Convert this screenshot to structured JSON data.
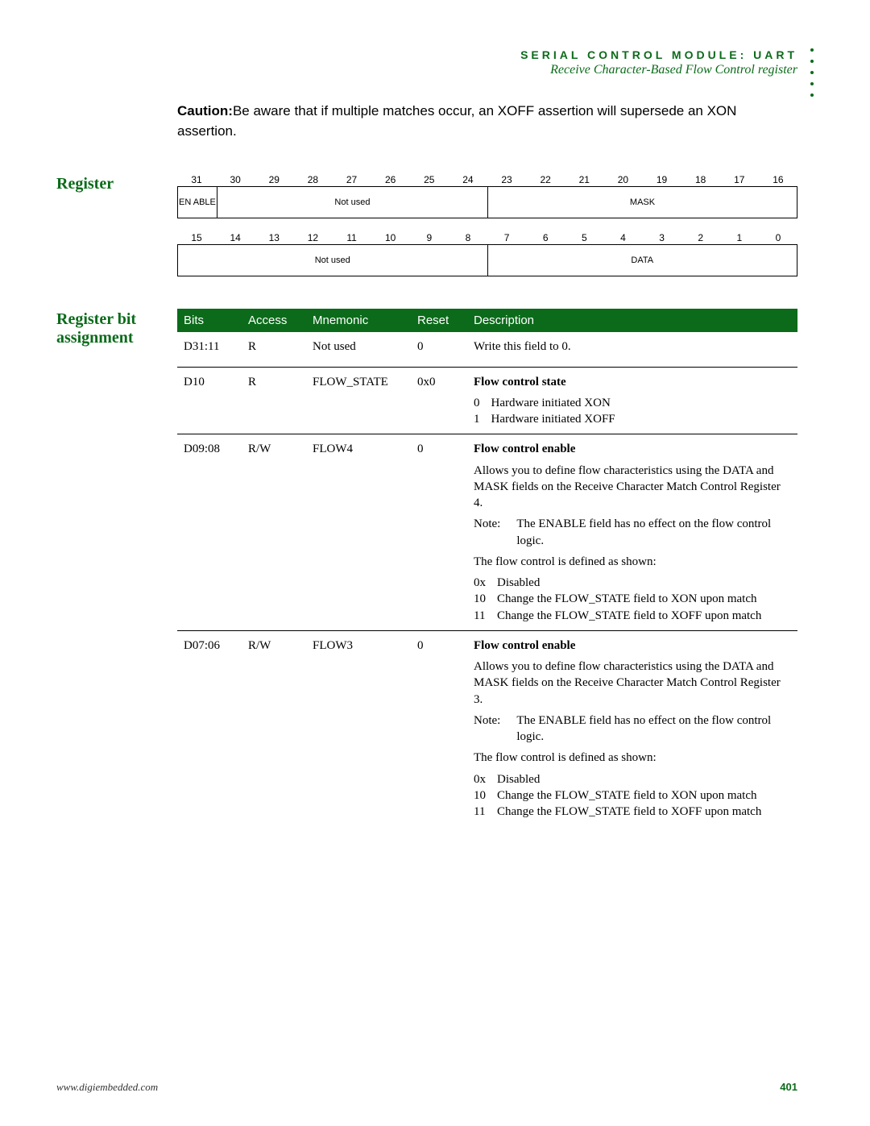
{
  "colors": {
    "accent": "#0b6b1a",
    "bg": "#ffffff",
    "text": "#000000"
  },
  "header": {
    "line1": "SERIAL CONTROL MODULE: UART",
    "line2": "Receive Character-Based Flow Control register"
  },
  "caution": {
    "label": "Caution:",
    "text": "Be aware that if multiple matches occur, an XOFF assertion will supersede an XON assertion."
  },
  "sections": {
    "register_title": "Register",
    "bit_assign_title_l1": "Register bit",
    "bit_assign_title_l2": "assignment"
  },
  "diagram": {
    "row1_bits": [
      "31",
      "30",
      "29",
      "28",
      "27",
      "26",
      "25",
      "24",
      "23",
      "22",
      "21",
      "20",
      "19",
      "18",
      "17",
      "16"
    ],
    "row1_cells": [
      {
        "label": "EN ABLE",
        "span": 1
      },
      {
        "label": "Not used",
        "span": 7
      },
      {
        "label": "MASK",
        "span": 8
      }
    ],
    "row2_bits": [
      "15",
      "14",
      "13",
      "12",
      "11",
      "10",
      "9",
      "8",
      "7",
      "6",
      "5",
      "4",
      "3",
      "2",
      "1",
      "0"
    ],
    "row2_cells": [
      {
        "label": "Not used",
        "span": 8
      },
      {
        "label": "DATA",
        "span": 8
      }
    ]
  },
  "table": {
    "head": {
      "bits": "Bits",
      "access": "Access",
      "mnem": "Mnemonic",
      "reset": "Reset",
      "desc": "Description"
    },
    "rows": [
      {
        "bits": "D31:11",
        "access": "R",
        "mnem": "Not used",
        "reset": "0",
        "desc_plain": "Write this field to 0."
      },
      {
        "bits": "D10",
        "access": "R",
        "mnem": "FLOW_STATE",
        "reset": "0x0",
        "desc_title": "Flow control state",
        "values": [
          {
            "k": "0",
            "v": "Hardware initiated XON"
          },
          {
            "k": "1",
            "v": "Hardware initiated XOFF"
          }
        ]
      },
      {
        "bits": "D09:08",
        "access": "R/W",
        "mnem": "FLOW4",
        "reset": "0",
        "desc_title": "Flow control enable",
        "desc_para": "Allows you to define flow characteristics using the DATA and MASK fields on the Receive Character Match Control Register 4.",
        "note_label": "Note:",
        "note_text": "The ENABLE field has no effect on the flow control logic.",
        "desc_para2": "The flow control is defined as shown:",
        "values": [
          {
            "k": "0x",
            "v": "Disabled"
          },
          {
            "k": "10",
            "v": "Change the FLOW_STATE field to XON upon match"
          },
          {
            "k": "11",
            "v": "Change the FLOW_STATE field to XOFF upon match"
          }
        ]
      },
      {
        "bits": "D07:06",
        "access": "R/W",
        "mnem": "FLOW3",
        "reset": "0",
        "desc_title": "Flow control enable",
        "desc_para": "Allows you to define flow characteristics using the DATA and MASK fields on the Receive Character Match Control Register 3.",
        "note_label": "Note:",
        "note_text": "The ENABLE field has no effect on the flow control logic.",
        "desc_para2": "The flow control is defined as shown:",
        "values": [
          {
            "k": "0x",
            "v": "Disabled"
          },
          {
            "k": "10",
            "v": "Change the FLOW_STATE field to XON upon match"
          },
          {
            "k": "11",
            "v": "Change the FLOW_STATE field to XOFF upon match"
          }
        ]
      }
    ]
  },
  "footer": {
    "url": "www.digiembedded.com",
    "page": "401"
  }
}
